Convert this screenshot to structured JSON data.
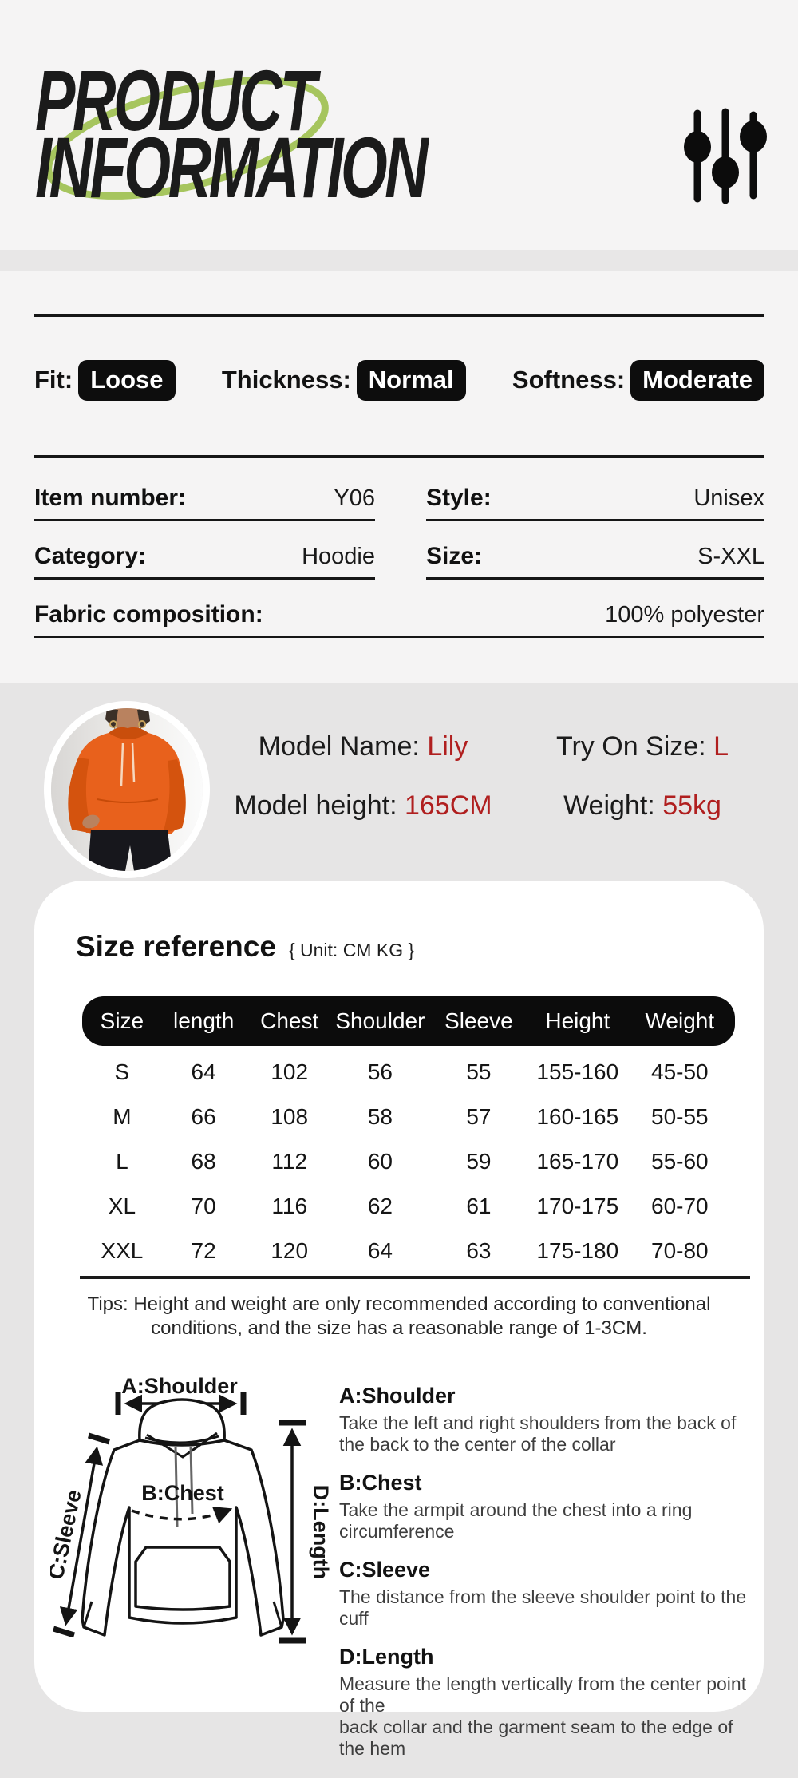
{
  "header": {
    "title_line1": "PRODUCT",
    "title_line2": "INFORMATION"
  },
  "attributes": {
    "items": [
      {
        "label": "Fit:",
        "value": "Loose"
      },
      {
        "label": "Thickness:",
        "value": "Normal"
      },
      {
        "label": "Softness:",
        "value": "Moderate"
      }
    ]
  },
  "details": {
    "item_number_label": "Item number:",
    "item_number": "Y06",
    "style_label": "Style:",
    "style": "Unisex",
    "category_label": "Category:",
    "category": "Hoodie",
    "size_label": "Size:",
    "size": "S-XXL",
    "fabric_label": "Fabric composition:",
    "fabric": "100% polyester"
  },
  "model": {
    "name_label": "Model Name:",
    "name": "Lily",
    "try_on_label": "Try On Size:",
    "try_on": "L",
    "height_label": "Model height:",
    "height": "165CM",
    "weight_label": "Weight:",
    "weight": "55kg"
  },
  "size_reference": {
    "title": "Size reference",
    "unit": "{ Unit: CM KG }",
    "columns": [
      "Size",
      "length",
      "Chest",
      "Shoulder",
      "Sleeve",
      "Height",
      "Weight"
    ],
    "rows": [
      [
        "S",
        "64",
        "102",
        "56",
        "55",
        "155-160",
        "45-50"
      ],
      [
        "M",
        "66",
        "108",
        "58",
        "57",
        "160-165",
        "50-55"
      ],
      [
        "L",
        "68",
        "112",
        "60",
        "59",
        "165-170",
        "55-60"
      ],
      [
        "XL",
        "70",
        "116",
        "62",
        "61",
        "170-175",
        "60-70"
      ],
      [
        "XXL",
        "72",
        "120",
        "64",
        "63",
        "175-180",
        "70-80"
      ]
    ],
    "tips": "Tips: Height and weight are only recommended according to conventional\nconditions, and the size has a reasonable range of 1-3CM."
  },
  "measure_guide": {
    "diagram_labels": {
      "shoulder": "A:Shoulder",
      "chest": "B:Chest",
      "sleeve": "C:Sleeve",
      "length": "D:Length"
    },
    "items": [
      {
        "title": "A:Shoulder",
        "desc": "Take the left and right shoulders from the back of\nthe back to the center of the collar"
      },
      {
        "title": "B:Chest",
        "desc": "Take the armpit around the chest into a ring circumference"
      },
      {
        "title": "C:Sleeve",
        "desc": "The distance from the sleeve shoulder point to the cuff"
      },
      {
        "title": "D:Length",
        "desc": "Measure the length vertically from the center point of the\nback collar and the garment seam to the edge of the hem"
      }
    ]
  },
  "colors": {
    "accent_red": "#b01f1f",
    "badge_black": "#0d0d0d",
    "ellipse_green": "#a6c55e",
    "hoodie_orange": "#e8611c"
  }
}
